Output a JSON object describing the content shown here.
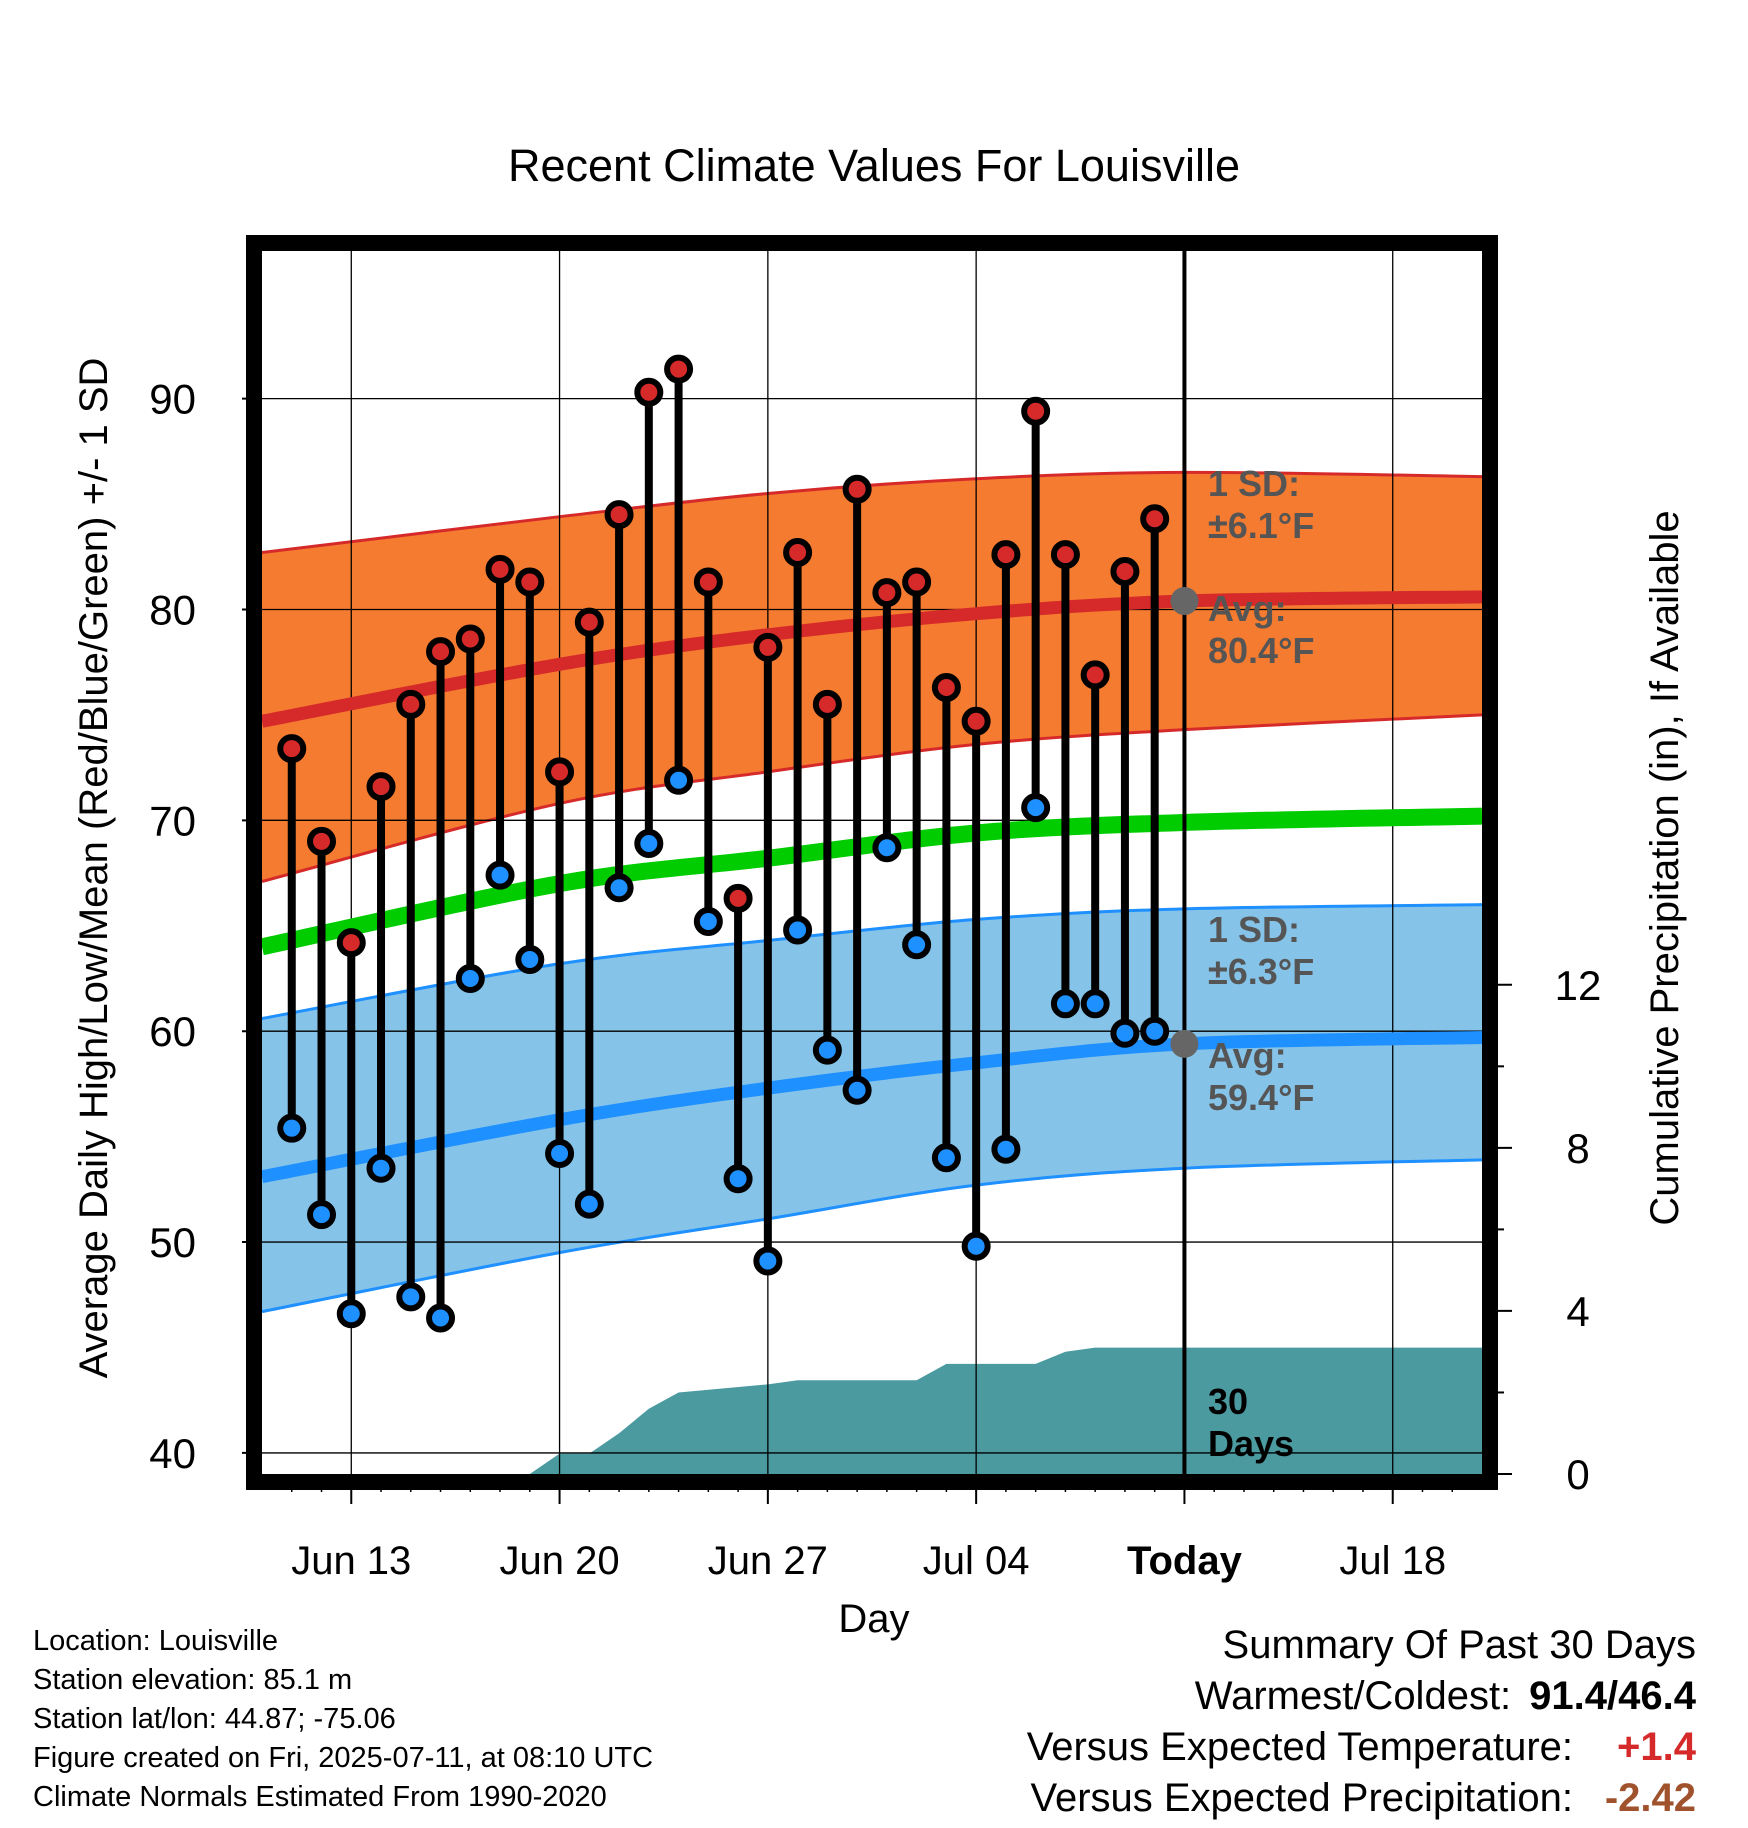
{
  "colors": {
    "high_band": "#f47b2f",
    "high_edge": "#d62a2a",
    "low_band": "#86c3e8",
    "low_edge": "#1e90ff",
    "mean": "#00cc00",
    "precip": "#4a9aa0",
    "annotation": "#555555",
    "high_dot": "#d62a2a",
    "low_dot": "#1e90ff",
    "today_marker": "#666666"
  },
  "chart_data": {
    "type": "line",
    "title": "Recent Climate Values For Louisville",
    "xlabel": "Day",
    "ylabel": "Average Daily High/Low/Mean (Red/Blue/Green) +/- 1 SD",
    "y2label": "Cumulative Precipitation (in), If Available",
    "x_tick_labels": [
      "Jun 13",
      "Jun 20",
      "Jun 27",
      "Jul 04",
      "Today",
      "Jul 18"
    ],
    "x_tick_dates": [
      "2025-06-13",
      "2025-06-20",
      "2025-06-27",
      "2025-07-04",
      "2025-07-11",
      "2025-07-18"
    ],
    "xlim": [
      "2025-06-10",
      "2025-07-21"
    ],
    "ylim": [
      39,
      97
    ],
    "y_ticks": [
      40,
      50,
      60,
      70,
      80,
      90
    ],
    "y2lim": [
      0,
      30
    ],
    "y2_ticks": [
      0,
      4,
      8,
      12
    ],
    "grid": true,
    "daily": {
      "dates": [
        "2025-06-11",
        "2025-06-12",
        "2025-06-13",
        "2025-06-14",
        "2025-06-15",
        "2025-06-16",
        "2025-06-17",
        "2025-06-18",
        "2025-06-19",
        "2025-06-20",
        "2025-06-21",
        "2025-06-22",
        "2025-06-23",
        "2025-06-24",
        "2025-06-25",
        "2025-06-26",
        "2025-06-27",
        "2025-06-28",
        "2025-06-29",
        "2025-06-30",
        "2025-07-01",
        "2025-07-02",
        "2025-07-03",
        "2025-07-04",
        "2025-07-05",
        "2025-07-06",
        "2025-07-07",
        "2025-07-08",
        "2025-07-09",
        "2025-07-10"
      ],
      "high": [
        73.4,
        69.0,
        64.2,
        71.6,
        75.5,
        78.0,
        78.6,
        81.9,
        81.3,
        72.3,
        79.4,
        84.5,
        90.3,
        91.4,
        81.3,
        66.3,
        78.2,
        82.7,
        75.5,
        85.7,
        80.8,
        81.3,
        76.3,
        74.7,
        82.6,
        89.4,
        82.6,
        76.9,
        81.8,
        84.3
      ],
      "low": [
        55.4,
        51.3,
        46.6,
        53.5,
        47.4,
        46.4,
        62.5,
        67.4,
        63.4,
        54.2,
        51.8,
        66.8,
        68.9,
        71.9,
        65.2,
        53.0,
        49.1,
        64.8,
        59.1,
        57.2,
        68.7,
        64.1,
        54.0,
        49.8,
        54.4,
        70.6,
        61.3,
        61.3,
        59.9,
        60.0
      ]
    },
    "normals": {
      "dates": [
        "2025-06-10",
        "2025-06-20",
        "2025-06-27",
        "2025-07-04",
        "2025-07-11",
        "2025-07-21"
      ],
      "high_avg": [
        74.7,
        77.4,
        78.8,
        79.8,
        80.4,
        80.6
      ],
      "high_upper": [
        82.7,
        84.4,
        85.5,
        86.2,
        86.5,
        86.3
      ],
      "high_lower": [
        67.1,
        70.8,
        72.3,
        73.6,
        74.3,
        75.0
      ],
      "mean_avg": [
        64.0,
        67.0,
        68.2,
        69.4,
        69.9,
        70.2
      ],
      "low_avg": [
        53.1,
        55.8,
        57.3,
        58.5,
        59.4,
        59.7
      ],
      "low_upper": [
        60.6,
        63.2,
        64.3,
        65.3,
        65.8,
        66.0
      ],
      "low_lower": [
        46.7,
        49.5,
        51.1,
        52.7,
        53.5,
        53.9
      ]
    },
    "precipitation": {
      "dates": [
        "2025-06-10",
        "2025-06-19",
        "2025-06-20",
        "2025-06-21",
        "2025-06-22",
        "2025-06-23",
        "2025-06-24",
        "2025-06-27",
        "2025-06-28",
        "2025-07-01",
        "2025-07-02",
        "2025-07-03",
        "2025-07-04",
        "2025-07-05",
        "2025-07-06",
        "2025-07-07",
        "2025-07-08",
        "2025-07-11",
        "2025-07-21"
      ],
      "cumulative": [
        0,
        0,
        0.5,
        0.5,
        1.0,
        1.6,
        2.0,
        2.2,
        2.3,
        2.3,
        2.3,
        2.7,
        2.7,
        2.7,
        2.7,
        3.0,
        3.1,
        3.1,
        3.1
      ]
    },
    "today": "2025-07-11",
    "annotations": {
      "high_sd_label": "1 SD:",
      "high_sd_value": "±6.1°F",
      "high_avg_label": "Avg:",
      "high_avg_value": "80.4°F",
      "low_sd_label": "1 SD:",
      "low_sd_value": "±6.3°F",
      "low_avg_label": "Avg:",
      "low_avg_value": "59.4°F",
      "period_number": "30",
      "period_unit": "Days"
    }
  },
  "info": {
    "location": "Location: Louisville",
    "elevation": "Station elevation: 85.1 m",
    "latlon": "Station lat/lon: 44.87; -75.06",
    "created": "Figure created on Fri, 2025-07-11, at 08:10 UTC",
    "normals": "Climate Normals Estimated From 1990-2020"
  },
  "summary": {
    "heading": "Summary Of Past 30 Days",
    "warm_cold_label": "Warmest/Coldest:",
    "warm_cold_value": "91.4/46.4",
    "temp_label": "Versus Expected Temperature:",
    "temp_value": "+1.4",
    "precip_label": "Versus Expected Precipitation:",
    "precip_value": "-2.42"
  }
}
